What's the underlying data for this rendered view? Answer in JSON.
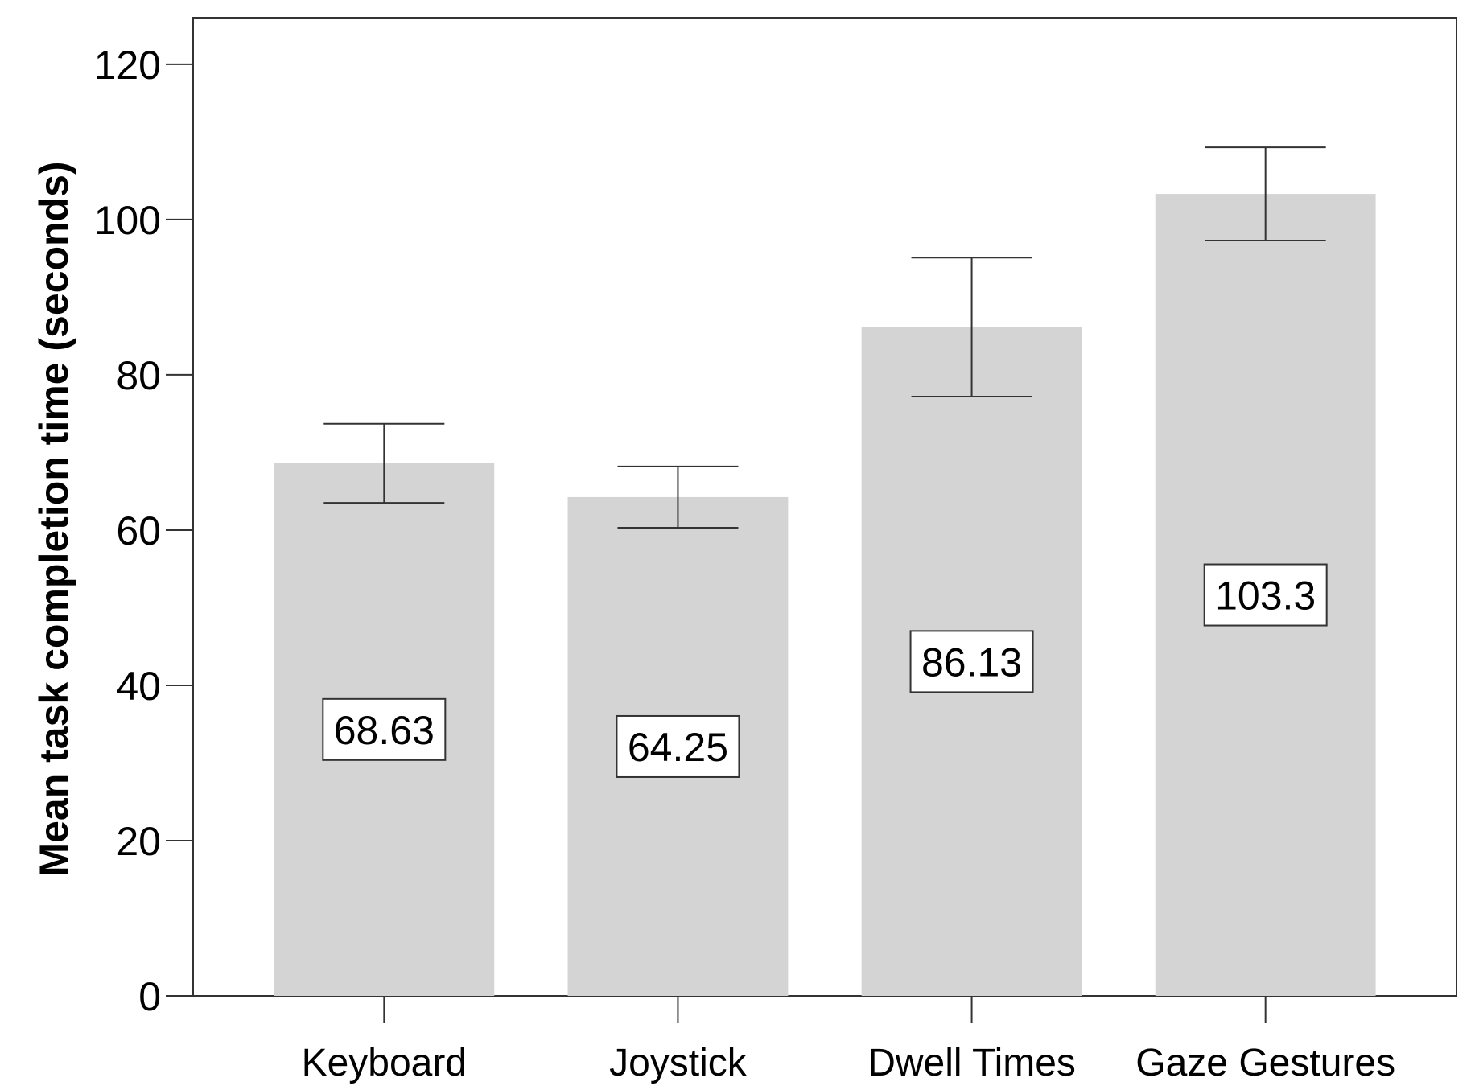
{
  "chart_data": {
    "type": "bar",
    "title": "",
    "xlabel": "",
    "ylabel": "Mean task completion time (seconds)",
    "categories": [
      "Keyboard",
      "Joystick",
      "Dwell Times",
      "Gaze Gestures"
    ],
    "values": [
      68.63,
      64.25,
      86.13,
      103.3
    ],
    "data_labels": [
      "68.63",
      "64.25",
      "86.13",
      "103.3"
    ],
    "error_bars": [
      {
        "low": 63.5,
        "high": 73.7
      },
      {
        "low": 60.3,
        "high": 68.2
      },
      {
        "low": 77.2,
        "high": 95.1
      },
      {
        "low": 97.3,
        "high": 109.3
      }
    ],
    "ylim": [
      0,
      126
    ],
    "yticks": [
      0,
      20,
      40,
      60,
      80,
      100,
      120
    ],
    "ytick_labels": [
      "0",
      "20",
      "40",
      "60",
      "80",
      "100",
      "120"
    ],
    "grid": false,
    "legend": "none",
    "colors": {
      "bar": "#d4d4d4",
      "axis": "#333333",
      "error_bar": "#333333",
      "label_box_stroke": "#333333",
      "label_box_fill": "#ffffff"
    }
  }
}
